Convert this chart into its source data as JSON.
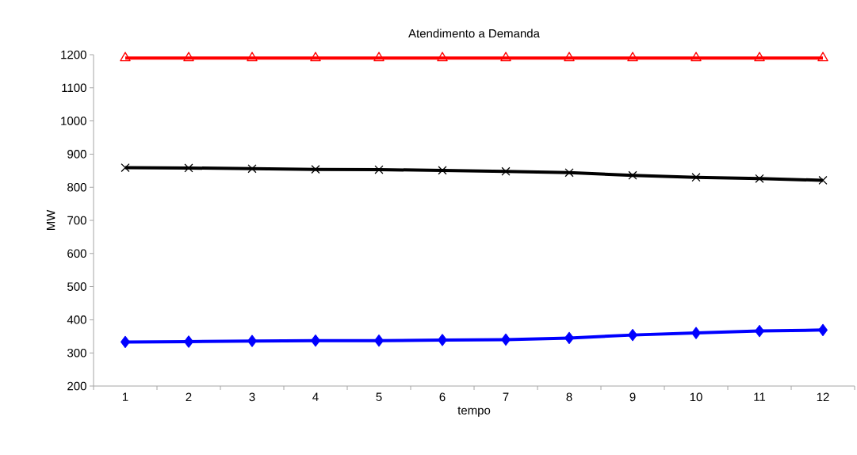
{
  "chart_data": {
    "type": "line",
    "title": "Atendimento a Demanda",
    "xlabel": "tempo",
    "ylabel": "MW",
    "categories": [
      "1",
      "2",
      "3",
      "4",
      "5",
      "6",
      "7",
      "8",
      "9",
      "10",
      "11",
      "12"
    ],
    "series": [
      {
        "color": "#ff0000",
        "marker": "triangle",
        "values": [
          1190,
          1190,
          1190,
          1190,
          1190,
          1190,
          1190,
          1190,
          1190,
          1190,
          1190,
          1190
        ]
      },
      {
        "color": "#000000",
        "marker": "cross",
        "values": [
          859,
          858,
          856,
          854,
          853,
          851,
          848,
          844,
          836,
          830,
          826,
          821
        ]
      },
      {
        "color": "#0000ff",
        "marker": "diamond",
        "values": [
          333,
          334,
          336,
          337,
          337,
          339,
          340,
          345,
          354,
          360,
          366,
          369
        ]
      }
    ],
    "ylim": [
      200,
      1200
    ],
    "yticks": [
      200,
      300,
      400,
      500,
      600,
      700,
      800,
      900,
      1000,
      1100,
      1200
    ],
    "grid": false,
    "line_style": "solid"
  }
}
